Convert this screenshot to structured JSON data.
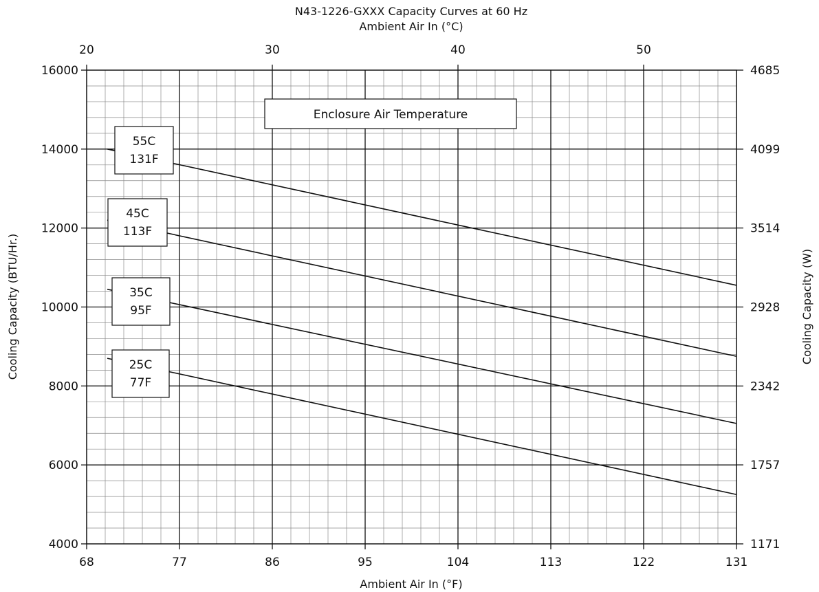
{
  "chart_data": {
    "type": "line",
    "title": "N43-1226-GXXX Capacity Curves at 60 Hz",
    "xlabel": "Ambient Air In (°F)",
    "ylabel": "Cooling Capacity (BTU/Hr.)",
    "x2label": "Ambient Air In (°C)",
    "y2label": "Cooling Capacity (W)",
    "xlim": [
      68,
      131
    ],
    "ylim": [
      4000,
      16000
    ],
    "x2lim": [
      20,
      55
    ],
    "y2lim": [
      1171,
      4685
    ],
    "xticks": [
      "68",
      "77",
      "86",
      "95",
      "104",
      "113",
      "122",
      "131"
    ],
    "yticks": [
      "4000",
      "6000",
      "8000",
      "10000",
      "12000",
      "14000",
      "16000"
    ],
    "x2ticks": [
      "20",
      "30",
      "40",
      "50"
    ],
    "y2ticks": [
      "1171",
      "1757",
      "2342",
      "2928",
      "3514",
      "4099",
      "4685"
    ],
    "grid": true,
    "legend_title": "Enclosure Air Temperature",
    "series": [
      {
        "name": "55C 131F",
        "label_lines": [
          "55C",
          "131F"
        ],
        "x": [
          70,
          131
        ],
        "y": [
          14000,
          10550
        ]
      },
      {
        "name": "45C 113F",
        "label_lines": [
          "45C",
          "113F"
        ],
        "x": [
          70,
          131
        ],
        "y": [
          12200,
          8750
        ]
      },
      {
        "name": "35C 95F",
        "label_lines": [
          "35C",
          "95F"
        ],
        "x": [
          70,
          131
        ],
        "y": [
          10450,
          7050
        ]
      },
      {
        "name": "25C 77F",
        "label_lines": [
          "25C",
          "77F"
        ],
        "x": [
          70,
          131
        ],
        "y": [
          8700,
          5250
        ]
      }
    ]
  }
}
